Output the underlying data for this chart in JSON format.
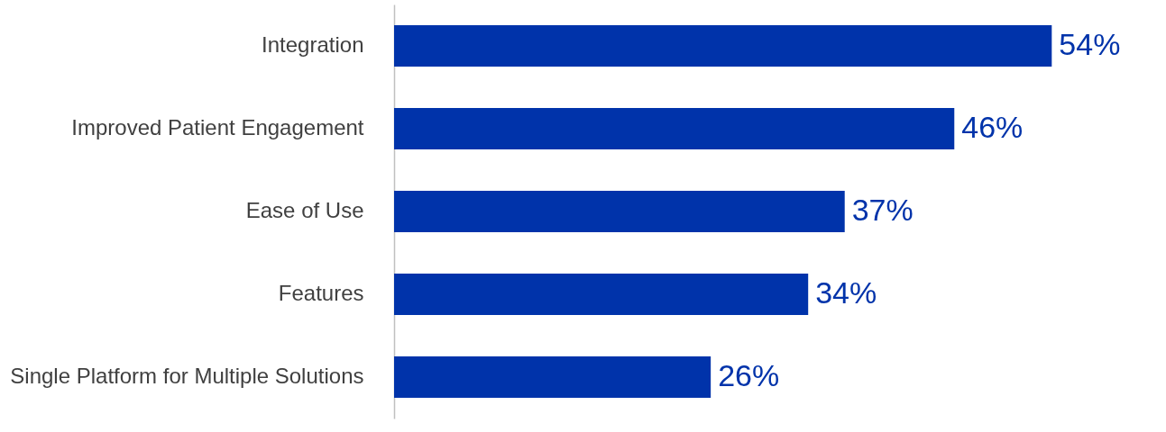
{
  "chart_data": {
    "type": "bar",
    "orientation": "horizontal",
    "categories": [
      "Integration",
      "Improved Patient Engagement",
      "Ease of Use",
      "Features",
      "Single Platform for Multiple Solutions"
    ],
    "values": [
      54,
      46,
      37,
      34,
      26
    ],
    "value_labels": [
      "54%",
      "46%",
      "37%",
      "34%",
      "26%"
    ],
    "color": "#0033aa"
  }
}
